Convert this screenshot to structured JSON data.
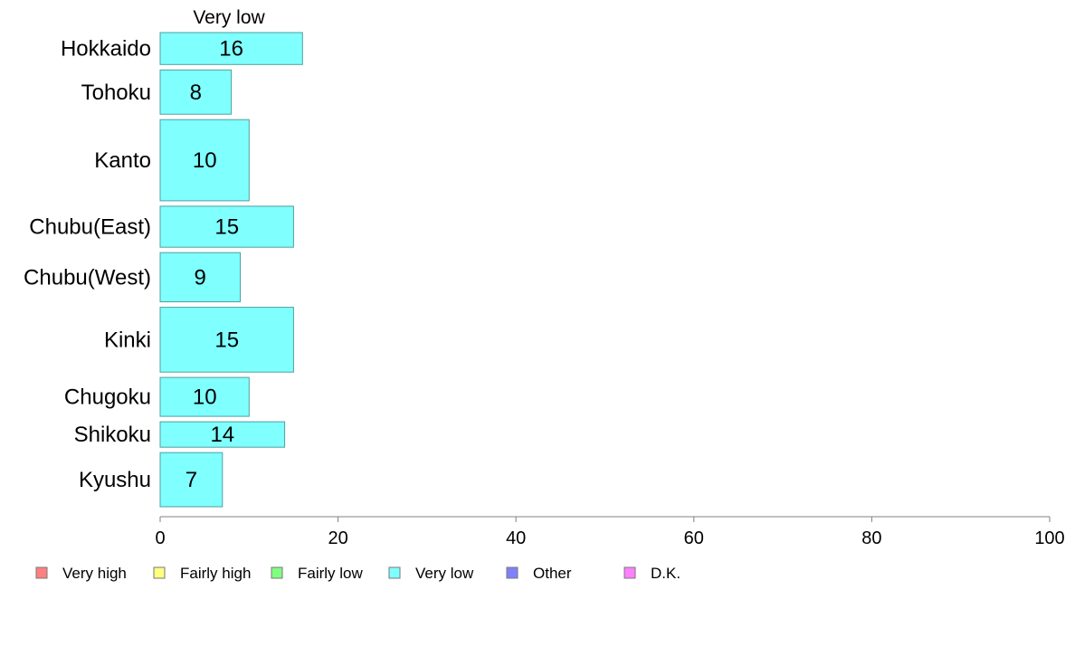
{
  "chart_data": {
    "type": "bar",
    "orientation": "horizontal",
    "panel_title": "Very low",
    "categories": [
      "Hokkaido",
      "Tohoku",
      "Kanto",
      "Chubu(East)",
      "Chubu(West)",
      "Kinki",
      "Chugoku",
      "Shikoku",
      "Kyushu"
    ],
    "category_weights": [
      0.78,
      1.08,
      1.98,
      1.0,
      1.2,
      1.58,
      0.95,
      0.62,
      1.32
    ],
    "series": [
      {
        "name": "Very low",
        "color": "#80ffff",
        "values": [
          16,
          8,
          10,
          15,
          9,
          15,
          10,
          14,
          7
        ]
      }
    ],
    "xlim": [
      0,
      100
    ],
    "xticks": [
      0,
      20,
      40,
      60,
      80,
      100
    ],
    "grid": false,
    "legend": {
      "position": "bottom",
      "entries": [
        {
          "label": "Very high",
          "color": "#ff8080"
        },
        {
          "label": "Fairly high",
          "color": "#ffff80"
        },
        {
          "label": "Fairly low",
          "color": "#80ff80"
        },
        {
          "label": "Very low",
          "color": "#80ffff"
        },
        {
          "label": "Other",
          "color": "#8080ff"
        },
        {
          "label": "D.K.",
          "color": "#ff80ff"
        }
      ]
    }
  }
}
